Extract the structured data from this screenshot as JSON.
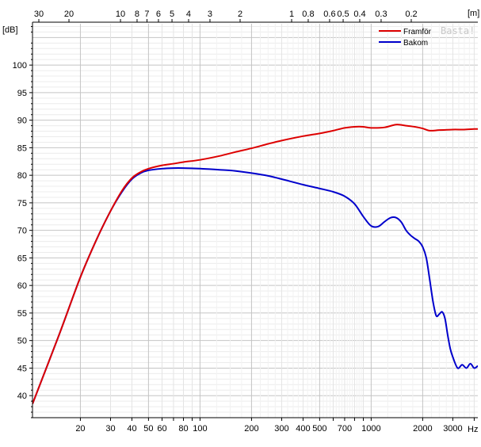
{
  "chart_data": {
    "type": "line",
    "x_scale": "log",
    "y_scale": "linear",
    "xlim": [
      10.5,
      4200
    ],
    "ylim": [
      36,
      107.5
    ],
    "grid": true,
    "legend_position": "top-right",
    "ylabel": "[dB]",
    "x_unit": "Hz",
    "top_axis_unit": "[m]",
    "watermark": "Basta!",
    "y_ticks": [
      40,
      45,
      50,
      55,
      60,
      65,
      70,
      75,
      80,
      85,
      90,
      95,
      100
    ],
    "x_major_ticks": [
      20,
      30,
      40,
      50,
      60,
      80,
      100,
      200,
      300,
      400,
      500,
      700,
      1000,
      2000,
      3000
    ],
    "x_minor_ticks": [
      70,
      90,
      600,
      800,
      900,
      4000
    ],
    "x_tick_labels": [
      {
        "v": 20,
        "t": "20"
      },
      {
        "v": 30,
        "t": "30"
      },
      {
        "v": 40,
        "t": "40"
      },
      {
        "v": 50,
        "t": "50"
      },
      {
        "v": 60,
        "t": "60"
      },
      {
        "v": 80,
        "t": "80"
      },
      {
        "v": 100,
        "t": "100"
      },
      {
        "v": 200,
        "t": "200"
      },
      {
        "v": 300,
        "t": "300"
      },
      {
        "v": 400,
        "t": "400"
      },
      {
        "v": 500,
        "t": "500"
      },
      {
        "v": 700,
        "t": "700"
      },
      {
        "v": 1000,
        "t": "1000"
      },
      {
        "v": 2000,
        "t": "2000"
      },
      {
        "v": 3000,
        "t": "3000"
      }
    ],
    "top_ticks": [
      {
        "v": 30,
        "t": "30"
      },
      {
        "v": 20,
        "t": "20"
      },
      {
        "v": 10,
        "t": "10"
      },
      {
        "v": 8,
        "t": "8"
      },
      {
        "v": 7,
        "t": "7"
      },
      {
        "v": 6,
        "t": "6"
      },
      {
        "v": 5,
        "t": "5"
      },
      {
        "v": 4,
        "t": "4"
      },
      {
        "v": 3,
        "t": "3"
      },
      {
        "v": 2,
        "t": "2"
      },
      {
        "v": 1,
        "t": "1"
      },
      {
        "v": 0.8,
        "t": "0.8"
      },
      {
        "v": 0.6,
        "t": "0.6"
      },
      {
        "v": 0.5,
        "t": "0.5"
      },
      {
        "v": 0.4,
        "t": "0.4"
      },
      {
        "v": 0.3,
        "t": "0.3"
      },
      {
        "v": 0.2,
        "t": "0.2"
      }
    ],
    "series": [
      {
        "name": "Framför",
        "color": "#dd0000",
        "x": [
          10.5,
          15,
          20,
          25,
          30,
          35,
          40,
          45,
          50,
          60,
          70,
          80,
          100,
          130,
          160,
          200,
          250,
          300,
          400,
          500,
          600,
          700,
          800,
          900,
          1000,
          1200,
          1400,
          1600,
          1800,
          2000,
          2200,
          2500,
          3000,
          3500,
          4000,
          4200
        ],
        "y": [
          38.5,
          51,
          61.5,
          68.5,
          73.5,
          77.2,
          79.5,
          80.6,
          81.2,
          81.8,
          82.1,
          82.4,
          82.8,
          83.5,
          84.2,
          84.9,
          85.7,
          86.3,
          87.1,
          87.6,
          88.1,
          88.6,
          88.8,
          88.8,
          88.6,
          88.7,
          89.2,
          89.0,
          88.8,
          88.5,
          88.1,
          88.2,
          88.3,
          88.3,
          88.4,
          88.4
        ]
      },
      {
        "name": "Bakom",
        "color": "#0000cc",
        "x": [
          10.5,
          15,
          20,
          25,
          30,
          35,
          40,
          45,
          50,
          60,
          70,
          80,
          100,
          130,
          160,
          200,
          250,
          300,
          400,
          500,
          600,
          700,
          800,
          900,
          1000,
          1100,
          1200,
          1300,
          1400,
          1500,
          1600,
          1700,
          1800,
          1900,
          2000,
          2100,
          2200,
          2300,
          2400,
          2500,
          2600,
          2700,
          2800,
          2900,
          3000,
          3200,
          3400,
          3600,
          3800,
          4000,
          4200
        ],
        "y": [
          38.5,
          51,
          61.5,
          68.5,
          73.5,
          77.0,
          79.3,
          80.4,
          80.9,
          81.2,
          81.3,
          81.3,
          81.2,
          81.0,
          80.8,
          80.4,
          79.9,
          79.3,
          78.3,
          77.6,
          77.0,
          76.2,
          74.8,
          72.5,
          70.8,
          70.7,
          71.6,
          72.3,
          72.3,
          71.5,
          70.0,
          69.1,
          68.5,
          68.0,
          67.0,
          65.0,
          61.0,
          57.0,
          54.5,
          54.8,
          55.2,
          54.0,
          51.0,
          48.5,
          47.0,
          45.0,
          45.6,
          45.0,
          45.8,
          45.0,
          45.4
        ]
      }
    ]
  }
}
